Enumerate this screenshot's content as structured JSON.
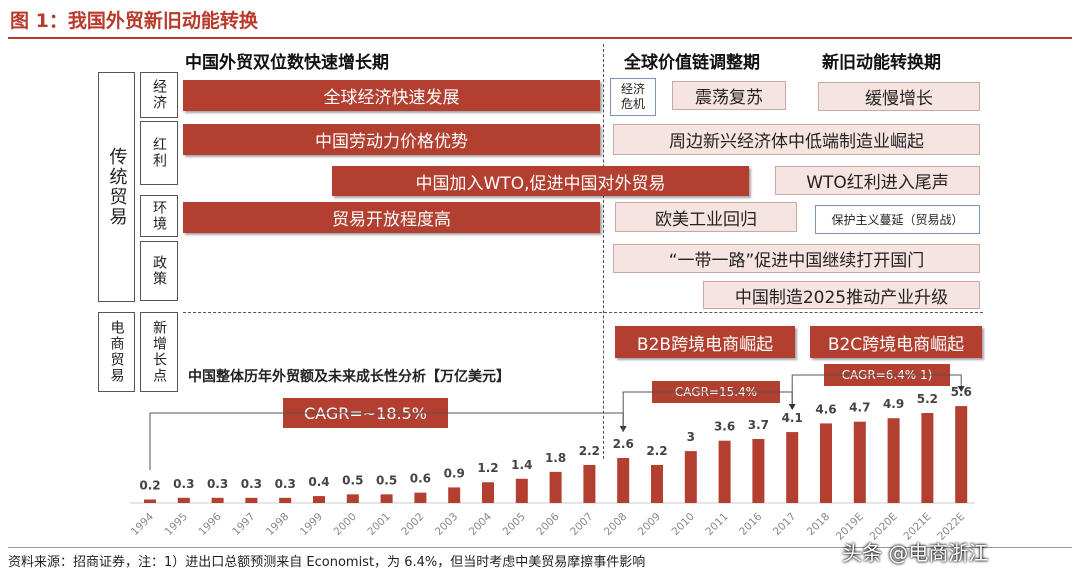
{
  "figure_title": "图 1：我国外贸新旧动能转换",
  "period_headers": {
    "p1": "中国外贸双位数快速增长期",
    "p2": "全球价值链调整期",
    "p3": "新旧动能转换期"
  },
  "sidebar": {
    "traditional": "传统贸易",
    "ecommerce": "电商贸易",
    "economy": "经济",
    "dividend": "红利",
    "environment": "环境",
    "policy": "政策",
    "growth_point": "新增长点"
  },
  "bars": {
    "global_economy": "全球经济快速发展",
    "crisis_line1": "经济",
    "crisis_line2": "危机",
    "oscillating": "震荡复苏",
    "slow_growth": "缓慢增长",
    "labor": "中国劳动力价格优势",
    "emerging": "周边新兴经济体中低端制造业崛起",
    "wto_join": "中国加入WTO,促进中国对外贸易",
    "wto_end": "WTO红利进入尾声",
    "openness": "贸易开放程度高",
    "reshoring": "欧美工业回归",
    "protectionism": "保护主义蔓延（贸易战）",
    "belt_road": "“一带一路”促进中国继续打开国门",
    "made_in_china": "中国制造2025推动产业升级",
    "b2b": "B2B跨境电商崛起",
    "b2c": "B2C跨境电商崛起"
  },
  "chart_data": {
    "type": "bar",
    "title": "中国整体历年外贸额及未来成长性分析【万亿美元】",
    "categories": [
      "1994",
      "1995",
      "1996",
      "1997",
      "1998",
      "1999",
      "2000",
      "2001",
      "2002",
      "2003",
      "2004",
      "2005",
      "2006",
      "2007",
      "2008",
      "2009",
      "2010",
      "2011",
      "2016",
      "2017",
      "2018",
      "2019E",
      "2020E",
      "2021E",
      "2022E"
    ],
    "values": [
      0.2,
      0.3,
      0.3,
      0.3,
      0.3,
      0.4,
      0.5,
      0.5,
      0.6,
      0.9,
      1.2,
      1.4,
      1.8,
      2.2,
      2.6,
      2.2,
      3.0,
      3.6,
      3.7,
      4.1,
      4.6,
      4.7,
      4.9,
      5.2,
      5.6
    ],
    "annotations": [
      "CAGR=~18.5%",
      "CAGR=15.4%",
      "CAGR=6.4% 1)"
    ],
    "color": "#b23f2f"
  },
  "source_note": "资料来源：招商证券，注：1）进出口总额预测来自 Economist，为 6.4%，但当时考虑中美贸易摩擦事件影响",
  "watermark": "头条 @电商浙江"
}
